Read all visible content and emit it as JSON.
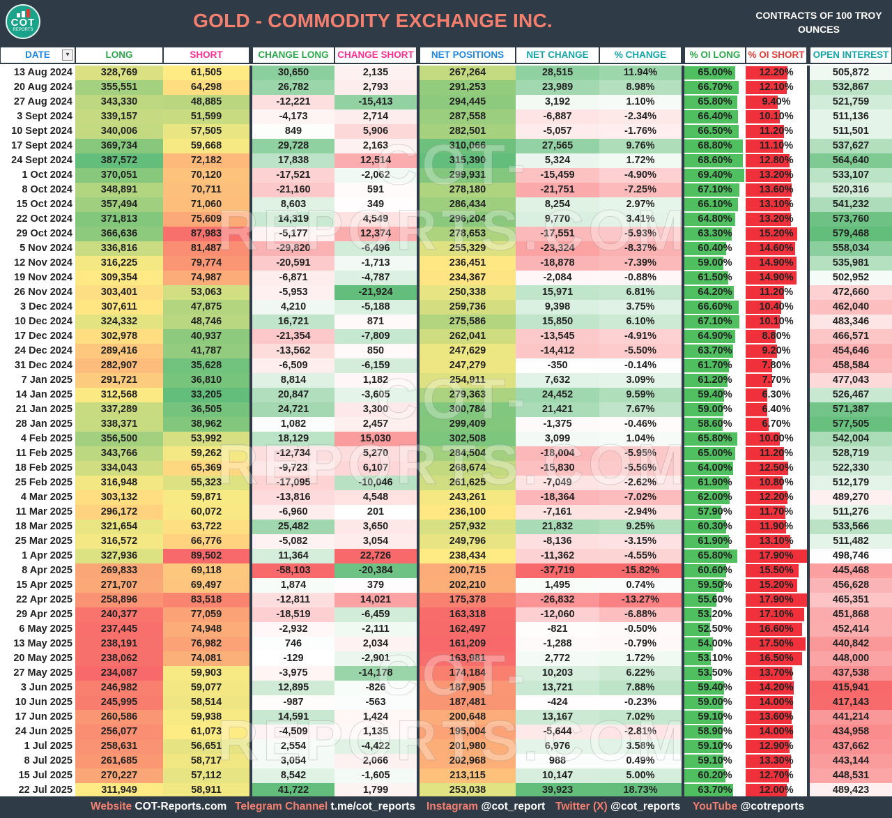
{
  "header": {
    "title": "GOLD - COMMODITY EXCHANGE INC.",
    "subtitle_line1": "CONTRACTS OF 100 TROY",
    "subtitle_line2": "OUNCES",
    "logo_text": "COT",
    "logo_sub": "REPORTS"
  },
  "watermark": "COT-REPORTS.COM",
  "colors": {
    "header_bg": "#2f3b47",
    "title": "#f57f6f",
    "high_green": "#63be7b",
    "mid_yellow": "#ffeb84",
    "low_red": "#f8696b",
    "oi_long_bar": "#4fbf5f",
    "oi_short_bar": "#f0303a"
  },
  "footer": {
    "website_label": "Website",
    "website_value": "COT-Reports.com",
    "telegram_label": "Telegram Channel",
    "telegram_value": "t.me/cot_reports",
    "instagram_label": "Instagram",
    "instagram_value": "@cot_report",
    "twitter_label": "Twitter (X)",
    "twitter_value": "@cot_reports",
    "youtube_label": "YouTube",
    "youtube_value": "@cotreports"
  },
  "chart_data": {
    "type": "table",
    "title": "GOLD - COMMODITY EXCHANGE INC.",
    "columns": [
      "DATE",
      "LONG",
      "SHORT",
      "CHANGE LONG",
      "CHANGE SHORT",
      "NET POSITIONS",
      "NET CHANGE",
      "% CHANGE",
      "% OI LONG",
      "% OI SHORT",
      "OPEN INTEREST"
    ],
    "rows": [
      [
        "13 Aug 2024",
        "328,769",
        "61,505",
        "30,650",
        "2,135",
        "267,264",
        "28,515",
        "11.94%",
        "65.00%",
        "12.20%",
        "505,872"
      ],
      [
        "20 Aug 2024",
        "355,551",
        "64,298",
        "26,782",
        "2,793",
        "291,253",
        "23,989",
        "8.98%",
        "66.70%",
        "12.10%",
        "532,867"
      ],
      [
        "27 Aug 2024",
        "343,330",
        "48,885",
        "-12,221",
        "-15,413",
        "294,445",
        "3,192",
        "1.10%",
        "65.80%",
        "9.40%",
        "521,759"
      ],
      [
        "3 Sept 2024",
        "339,157",
        "51,599",
        "-4,173",
        "2,714",
        "287,558",
        "-6,887",
        "-2.34%",
        "66.40%",
        "10.10%",
        "511,136"
      ],
      [
        "10 Sept 2024",
        "340,006",
        "57,505",
        "849",
        "5,906",
        "282,501",
        "-5,057",
        "-1.76%",
        "66.50%",
        "11.20%",
        "511,501"
      ],
      [
        "17 Sept 2024",
        "369,734",
        "59,668",
        "29,728",
        "2,163",
        "310,066",
        "27,565",
        "9.76%",
        "68.80%",
        "11.10%",
        "537,627"
      ],
      [
        "24 Sept 2024",
        "387,572",
        "72,182",
        "17,838",
        "12,514",
        "315,390",
        "5,324",
        "1.72%",
        "68.60%",
        "12.80%",
        "564,640"
      ],
      [
        "1 Oct 2024",
        "370,051",
        "70,120",
        "-17,521",
        "-2,062",
        "299,931",
        "-15,459",
        "-4.90%",
        "69.40%",
        "13.20%",
        "533,107"
      ],
      [
        "8 Oct 2024",
        "348,891",
        "70,711",
        "-21,160",
        "591",
        "278,180",
        "-21,751",
        "-7.25%",
        "67.10%",
        "13.60%",
        "520,316"
      ],
      [
        "15 Oct 2024",
        "357,494",
        "71,060",
        "8,603",
        "349",
        "286,434",
        "8,254",
        "2.97%",
        "66.10%",
        "13.10%",
        "541,232"
      ],
      [
        "22 Oct 2024",
        "371,813",
        "75,609",
        "14,319",
        "4,549",
        "296,204",
        "9,770",
        "3.41%",
        "64.80%",
        "13.20%",
        "573,760"
      ],
      [
        "29 Oct 2024",
        "366,636",
        "87,983",
        "-5,177",
        "12,374",
        "278,653",
        "-17,551",
        "-5.93%",
        "63.30%",
        "15.20%",
        "579,468"
      ],
      [
        "5 Nov 2024",
        "336,816",
        "81,487",
        "-29,820",
        "-6,496",
        "255,329",
        "-23,324",
        "-8.37%",
        "60.40%",
        "14.60%",
        "558,034"
      ],
      [
        "12 Nov 2024",
        "316,225",
        "79,774",
        "-20,591",
        "-1,713",
        "236,451",
        "-18,878",
        "-7.39%",
        "59.00%",
        "14.90%",
        "535,981"
      ],
      [
        "19 Nov 2024",
        "309,354",
        "74,987",
        "-6,871",
        "-4,787",
        "234,367",
        "-2,084",
        "-0.88%",
        "61.50%",
        "14.90%",
        "502,952"
      ],
      [
        "26 Nov 2024",
        "303,401",
        "53,063",
        "-5,953",
        "-21,924",
        "250,338",
        "15,971",
        "6.81%",
        "64.20%",
        "11.20%",
        "472,660"
      ],
      [
        "3 Dec 2024",
        "307,611",
        "47,875",
        "4,210",
        "-5,188",
        "259,736",
        "9,398",
        "3.75%",
        "66.60%",
        "10.40%",
        "462,040"
      ],
      [
        "10 Dec 2024",
        "324,332",
        "48,746",
        "16,721",
        "871",
        "275,586",
        "15,850",
        "6.10%",
        "67.10%",
        "10.10%",
        "483,346"
      ],
      [
        "17 Dec 2024",
        "302,978",
        "40,937",
        "-21,354",
        "-7,809",
        "262,041",
        "-13,545",
        "-4.91%",
        "64.90%",
        "8.80%",
        "466,571"
      ],
      [
        "24 Dec 2024",
        "289,416",
        "41,787",
        "-13,562",
        "850",
        "247,629",
        "-14,412",
        "-5.50%",
        "63.70%",
        "9.20%",
        "454,646"
      ],
      [
        "31 Dec 2024",
        "282,907",
        "35,628",
        "-6,509",
        "-6,159",
        "247,279",
        "-350",
        "-0.14%",
        "61.70%",
        "7.80%",
        "458,584"
      ],
      [
        "7 Jan 2025",
        "291,721",
        "36,810",
        "8,814",
        "1,182",
        "254,911",
        "7,632",
        "3.09%",
        "61.20%",
        "7.70%",
        "477,043"
      ],
      [
        "14 Jan 2025",
        "312,568",
        "33,205",
        "20,847",
        "-3,605",
        "279,363",
        "24,452",
        "9.59%",
        "59.40%",
        "6.30%",
        "526,467"
      ],
      [
        "21 Jan 2025",
        "337,289",
        "36,505",
        "24,721",
        "3,300",
        "300,784",
        "21,421",
        "7.67%",
        "59.00%",
        "6.40%",
        "571,387"
      ],
      [
        "28 Jan 2025",
        "338,371",
        "38,962",
        "1,082",
        "2,457",
        "299,409",
        "-1,375",
        "-0.46%",
        "58.60%",
        "6.70%",
        "577,505"
      ],
      [
        "4 Feb 2025",
        "356,500",
        "53,992",
        "18,129",
        "15,030",
        "302,508",
        "3,099",
        "1.04%",
        "65.80%",
        "10.00%",
        "542,004"
      ],
      [
        "11 Feb 2025",
        "343,766",
        "59,262",
        "-12,734",
        "5,270",
        "284,504",
        "-18,004",
        "-5.95%",
        "65.00%",
        "11.20%",
        "528,719"
      ],
      [
        "18 Feb 2025",
        "334,043",
        "65,369",
        "-9,723",
        "6,107",
        "268,674",
        "-15,830",
        "-5.56%",
        "64.00%",
        "12.50%",
        "522,330"
      ],
      [
        "25 Feb 2025",
        "316,948",
        "55,323",
        "-17,095",
        "-10,046",
        "261,625",
        "-7,049",
        "-2.62%",
        "61.90%",
        "10.80%",
        "512,179"
      ],
      [
        "4 Mar 2025",
        "303,132",
        "59,871",
        "-13,816",
        "4,548",
        "243,261",
        "-18,364",
        "-7.02%",
        "62.00%",
        "12.20%",
        "489,270"
      ],
      [
        "11 Mar 2025",
        "296,172",
        "60,072",
        "-6,960",
        "201",
        "236,100",
        "-7,161",
        "-2.94%",
        "57.90%",
        "11.70%",
        "511,276"
      ],
      [
        "18 Mar 2025",
        "321,654",
        "63,722",
        "25,482",
        "3,650",
        "257,932",
        "21,832",
        "9.25%",
        "60.30%",
        "11.90%",
        "533,566"
      ],
      [
        "25 Mar 2025",
        "316,572",
        "66,776",
        "-5,082",
        "3,054",
        "249,796",
        "-8,136",
        "-3.15%",
        "61.90%",
        "13.10%",
        "511,482"
      ],
      [
        "1 Apr 2025",
        "327,936",
        "89,502",
        "11,364",
        "22,726",
        "238,434",
        "-11,362",
        "-4.55%",
        "65.80%",
        "17.90%",
        "498,746"
      ],
      [
        "8 Apr 2025",
        "269,833",
        "69,118",
        "-58,103",
        "-20,384",
        "200,715",
        "-37,719",
        "-15.82%",
        "60.60%",
        "15.50%",
        "445,468"
      ],
      [
        "15 Apr 2025",
        "271,707",
        "69,497",
        "1,874",
        "379",
        "202,210",
        "1,495",
        "0.74%",
        "59.50%",
        "15.20%",
        "456,628"
      ],
      [
        "22 Apr 2025",
        "258,896",
        "83,518",
        "-12,811",
        "14,021",
        "175,378",
        "-26,832",
        "-13.27%",
        "55.60%",
        "17.90%",
        "465,351"
      ],
      [
        "29 Apr 2025",
        "240,377",
        "77,059",
        "-18,519",
        "-6,459",
        "163,318",
        "-12,060",
        "-6.88%",
        "53.20%",
        "17.10%",
        "451,868"
      ],
      [
        "6 May 2025",
        "237,445",
        "74,948",
        "-2,932",
        "-2,111",
        "162,497",
        "-821",
        "-0.50%",
        "52.50%",
        "16.60%",
        "452,414"
      ],
      [
        "13 May 2025",
        "238,191",
        "76,982",
        "746",
        "2,034",
        "161,209",
        "-1,288",
        "-0.79%",
        "54.00%",
        "17.50%",
        "440,842"
      ],
      [
        "20 May 2025",
        "238,062",
        "74,081",
        "-129",
        "-2,901",
        "163,981",
        "2,772",
        "1.72%",
        "53.10%",
        "16.50%",
        "448,000"
      ],
      [
        "27 May 2025",
        "234,087",
        "59,903",
        "-3,975",
        "-14,178",
        "174,184",
        "10,203",
        "6.22%",
        "53.50%",
        "13.70%",
        "437,538"
      ],
      [
        "3 Jun 2025",
        "246,982",
        "59,077",
        "12,895",
        "-826",
        "187,905",
        "13,721",
        "7.88%",
        "59.40%",
        "14.20%",
        "415,941"
      ],
      [
        "10 Jun 2025",
        "245,995",
        "58,514",
        "-987",
        "-563",
        "187,481",
        "-424",
        "-0.23%",
        "59.00%",
        "14.00%",
        "417,143"
      ],
      [
        "17 Jun 2025",
        "260,586",
        "59,938",
        "14,591",
        "1,424",
        "200,648",
        "13,167",
        "7.02%",
        "59.10%",
        "13.60%",
        "441,214"
      ],
      [
        "24 Jun 2025",
        "256,077",
        "61,073",
        "-4,509",
        "1,135",
        "195,004",
        "-5,644",
        "-2.81%",
        "58.90%",
        "14.00%",
        "434,958"
      ],
      [
        "1 Jul 2025",
        "258,631",
        "56,651",
        "2,554",
        "-4,422",
        "201,980",
        "6,976",
        "3.58%",
        "59.10%",
        "12.90%",
        "437,662"
      ],
      [
        "8 Jul 2025",
        "261,685",
        "58,717",
        "3,054",
        "2,066",
        "202,968",
        "988",
        "0.49%",
        "59.10%",
        "13.30%",
        "443,144"
      ],
      [
        "15 Jul 2025",
        "270,227",
        "57,112",
        "8,542",
        "-1,605",
        "213,115",
        "10,147",
        "5.00%",
        "60.20%",
        "12.70%",
        "448,531"
      ],
      [
        "22 Jul 2025",
        "311,949",
        "58,911",
        "41,722",
        "1,799",
        "253,038",
        "39,923",
        "18.73%",
        "63.70%",
        "12.00%",
        "489,423"
      ]
    ]
  }
}
